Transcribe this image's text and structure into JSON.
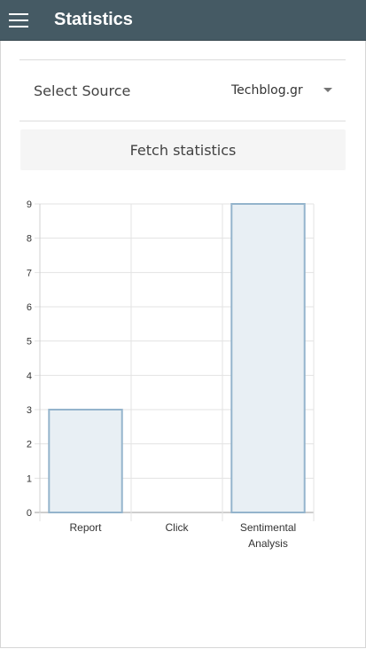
{
  "header": {
    "title": "Statistics",
    "menu_icon": "hamburger-menu-icon"
  },
  "source": {
    "label": "Select Source",
    "selected": "Techblog.gr"
  },
  "actions": {
    "fetch_label": "Fetch statistics"
  },
  "colors": {
    "appbar": "#455a64",
    "bar_fill": "#e8eff4",
    "bar_stroke": "#94b4cc"
  },
  "chart_data": {
    "type": "bar",
    "categories": [
      "Report",
      "Click",
      "Sentimental Analysis"
    ],
    "category_lines": [
      [
        "Report"
      ],
      [
        "Click"
      ],
      [
        "Sentimental",
        "Analysis"
      ]
    ],
    "values": [
      3,
      0,
      9
    ],
    "ylim": [
      0,
      9
    ],
    "yticks": [
      "0",
      "1",
      "2",
      "3",
      "4",
      "5",
      "6",
      "7",
      "8",
      "9"
    ],
    "grid": true,
    "legend": "none"
  }
}
